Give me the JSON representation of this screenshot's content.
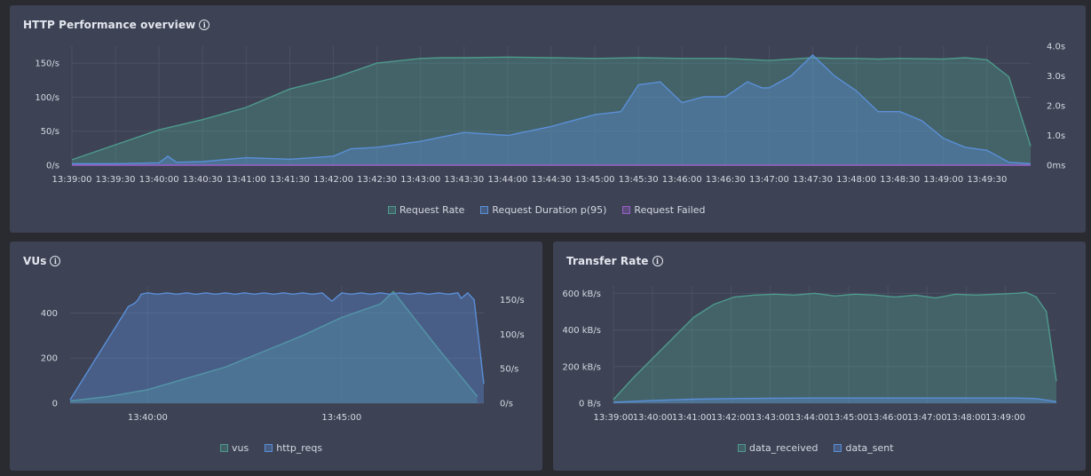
{
  "panels": {
    "http": {
      "title": "HTTP Performance overview",
      "info_icon": "i"
    },
    "vus": {
      "title": "VUs",
      "info_icon": "i"
    },
    "transfer": {
      "title": "Transfer Rate",
      "info_icon": "i"
    }
  },
  "colors": {
    "green": "#4e9a8c",
    "blue": "#5b8fd8",
    "purple": "#9a5fc9"
  },
  "chart_data": [
    {
      "id": "http",
      "type": "area",
      "title": "HTTP Performance overview",
      "categories": [
        "13:39:00",
        "13:39:30",
        "13:40:00",
        "13:40:30",
        "13:41:00",
        "13:41:30",
        "13:42:00",
        "13:42:30",
        "13:43:00",
        "13:43:30",
        "13:44:00",
        "13:44:30",
        "13:45:00",
        "13:45:30",
        "13:46:00",
        "13:46:30",
        "13:47:00",
        "13:47:30",
        "13:48:00",
        "13:48:30",
        "13:49:00",
        "13:49:30"
      ],
      "x_range": [
        0,
        660
      ],
      "y_left": {
        "ylim": [
          0,
          175
        ],
        "ticks": [
          0,
          50,
          100,
          150
        ],
        "tick_labels": [
          "0/s",
          "50/s",
          "100/s",
          "150/s"
        ]
      },
      "y_right": {
        "ylim": [
          0,
          4
        ],
        "ticks": [
          0,
          1,
          2,
          3,
          4
        ],
        "tick_labels": [
          "0ms",
          "1.0s",
          "2.0s",
          "3.0s",
          "4.0s"
        ]
      },
      "series": [
        {
          "name": "Request Rate",
          "axis": "left",
          "color": "green",
          "x": [
            0,
            30,
            60,
            90,
            120,
            150,
            180,
            210,
            240,
            255,
            270,
            300,
            330,
            360,
            390,
            420,
            450,
            480,
            510,
            525,
            540,
            555,
            570,
            600,
            615,
            630,
            645,
            660
          ],
          "values": [
            8,
            30,
            52,
            67,
            85,
            112,
            128,
            150,
            157,
            158,
            158,
            159,
            158,
            157,
            158,
            157,
            157,
            154,
            158,
            157,
            157,
            156,
            157,
            156,
            158,
            155,
            130,
            28
          ]
        },
        {
          "name": "Request Duration p(95)",
          "axis": "right",
          "color": "blue",
          "x": [
            0,
            30,
            60,
            66,
            72,
            90,
            120,
            150,
            180,
            192,
            210,
            240,
            270,
            300,
            330,
            360,
            378,
            390,
            405,
            420,
            435,
            450,
            465,
            475,
            480,
            495,
            510,
            525,
            540,
            555,
            570,
            585,
            600,
            615,
            630,
            645,
            660
          ],
          "values": [
            0.05,
            0.05,
            0.08,
            0.3,
            0.1,
            0.12,
            0.25,
            0.2,
            0.3,
            0.55,
            0.6,
            0.8,
            1.1,
            1.0,
            1.3,
            1.7,
            1.8,
            2.7,
            2.8,
            2.1,
            2.3,
            2.3,
            2.8,
            2.6,
            2.6,
            3.0,
            3.7,
            3.0,
            2.5,
            1.8,
            1.8,
            1.5,
            0.9,
            0.6,
            0.5,
            0.1,
            0.05
          ]
        },
        {
          "name": "Request Failed",
          "axis": "left",
          "color": "purple",
          "x": [
            0,
            660
          ],
          "values": [
            0,
            0
          ]
        }
      ]
    },
    {
      "id": "vus",
      "type": "area",
      "title": "VUs",
      "categories": [
        "13:40:00",
        "13:45:00"
      ],
      "x_range": [
        0,
        640
      ],
      "category_x": [
        120,
        420
      ],
      "y_left": {
        "ylim": [
          0,
          520
        ],
        "ticks": [
          0,
          200,
          400
        ],
        "tick_labels": [
          "0",
          "200",
          "400"
        ]
      },
      "y_right": {
        "ylim": [
          0,
          170
        ],
        "ticks": [
          0,
          50,
          100,
          150
        ],
        "tick_labels": [
          "0/s",
          "50/s",
          "100/s",
          "150/s"
        ]
      },
      "series": [
        {
          "name": "vus",
          "axis": "left",
          "color": "green",
          "x": [
            0,
            60,
            120,
            180,
            240,
            300,
            360,
            420,
            480,
            500,
            570,
            630
          ],
          "values": [
            10,
            30,
            60,
            110,
            160,
            230,
            300,
            380,
            440,
            495,
            240,
            30
          ]
        },
        {
          "name": "http_reqs",
          "axis": "right",
          "color": "blue",
          "x": [
            0,
            10,
            20,
            30,
            40,
            50,
            60,
            70,
            80,
            90,
            100,
            105,
            110,
            120,
            135,
            150,
            165,
            180,
            195,
            210,
            225,
            240,
            255,
            270,
            285,
            300,
            315,
            330,
            345,
            360,
            375,
            390,
            405,
            420,
            435,
            450,
            465,
            480,
            495,
            510,
            525,
            540,
            555,
            570,
            585,
            600,
            605,
            615,
            625,
            640
          ],
          "values": [
            5,
            20,
            35,
            50,
            65,
            80,
            95,
            110,
            125,
            140,
            145,
            150,
            158,
            160,
            158,
            160,
            158,
            160,
            158,
            160,
            158,
            160,
            158,
            160,
            158,
            160,
            158,
            160,
            158,
            160,
            158,
            160,
            148,
            160,
            158,
            160,
            158,
            160,
            158,
            160,
            158,
            160,
            158,
            160,
            158,
            160,
            152,
            160,
            150,
            28
          ]
        }
      ]
    },
    {
      "id": "transfer",
      "type": "area",
      "title": "Transfer Rate",
      "categories": [
        "13:39:00",
        "13:40:00",
        "13:41:00",
        "13:42:00",
        "13:43:00",
        "13:44:00",
        "13:45:00",
        "13:46:00",
        "13:47:00",
        "13:48:00",
        "13:49:00"
      ],
      "x_range": [
        0,
        660
      ],
      "y_left": {
        "ylim": [
          0,
          640
        ],
        "ticks": [
          0,
          200,
          400,
          600
        ],
        "tick_labels": [
          "0 B/s",
          "200 kB/s",
          "400 kB/s",
          "600 kB/s"
        ]
      },
      "series": [
        {
          "name": "data_received",
          "axis": "left",
          "color": "green",
          "x": [
            0,
            30,
            60,
            90,
            120,
            150,
            180,
            210,
            240,
            270,
            300,
            330,
            360,
            390,
            420,
            450,
            480,
            510,
            540,
            570,
            600,
            615,
            630,
            645,
            660
          ],
          "values": [
            20,
            140,
            250,
            360,
            470,
            540,
            580,
            590,
            595,
            590,
            600,
            585,
            595,
            590,
            580,
            590,
            575,
            595,
            590,
            595,
            600,
            605,
            580,
            500,
            120
          ]
        },
        {
          "name": "data_sent",
          "axis": "left",
          "color": "blue",
          "x": [
            0,
            60,
            120,
            180,
            240,
            300,
            360,
            420,
            480,
            540,
            600,
            630,
            660
          ],
          "values": [
            5,
            15,
            22,
            25,
            27,
            28,
            28,
            28,
            28,
            28,
            28,
            25,
            8
          ]
        }
      ]
    }
  ]
}
